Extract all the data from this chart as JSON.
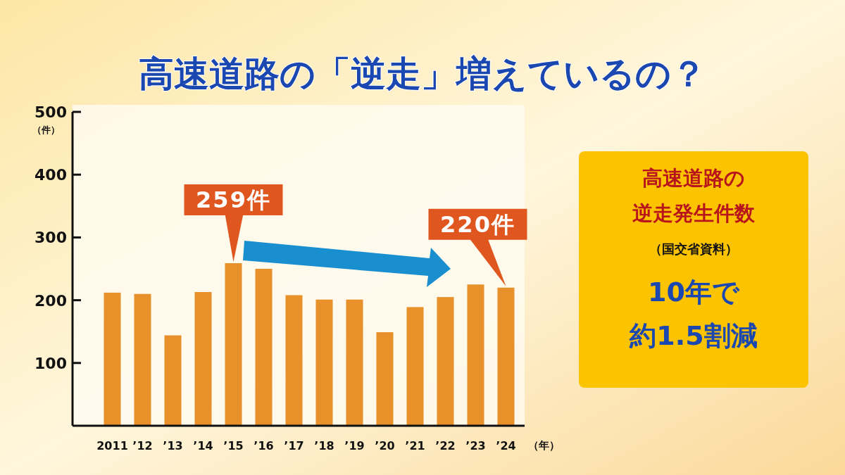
{
  "chart_data": {
    "type": "bar",
    "title": "高速道路の「逆走」増えているの？",
    "ylabel": "（件）",
    "xlabel": "（年）",
    "categories": [
      "2011",
      "’12",
      "’13",
      "’14",
      "’15",
      "’16",
      "’17",
      "’18",
      "’19",
      "’20",
      "’21",
      "’22",
      "’23",
      "’24"
    ],
    "values": [
      212,
      210,
      144,
      213,
      259,
      250,
      208,
      201,
      201,
      149,
      189,
      205,
      225,
      220
    ],
    "color": "#e8902a",
    "ylim": [
      0,
      500
    ],
    "yticks": [
      100,
      200,
      300,
      400,
      500
    ],
    "grid": false,
    "annotations": [
      {
        "text": "259件",
        "x": "’15",
        "y": 259
      },
      {
        "text": "220件",
        "x": "’24",
        "y": 220
      },
      "高速道路の",
      "逆走発生件数",
      "（国交省資料）",
      "10年で",
      "約1.5割減"
    ]
  }
}
